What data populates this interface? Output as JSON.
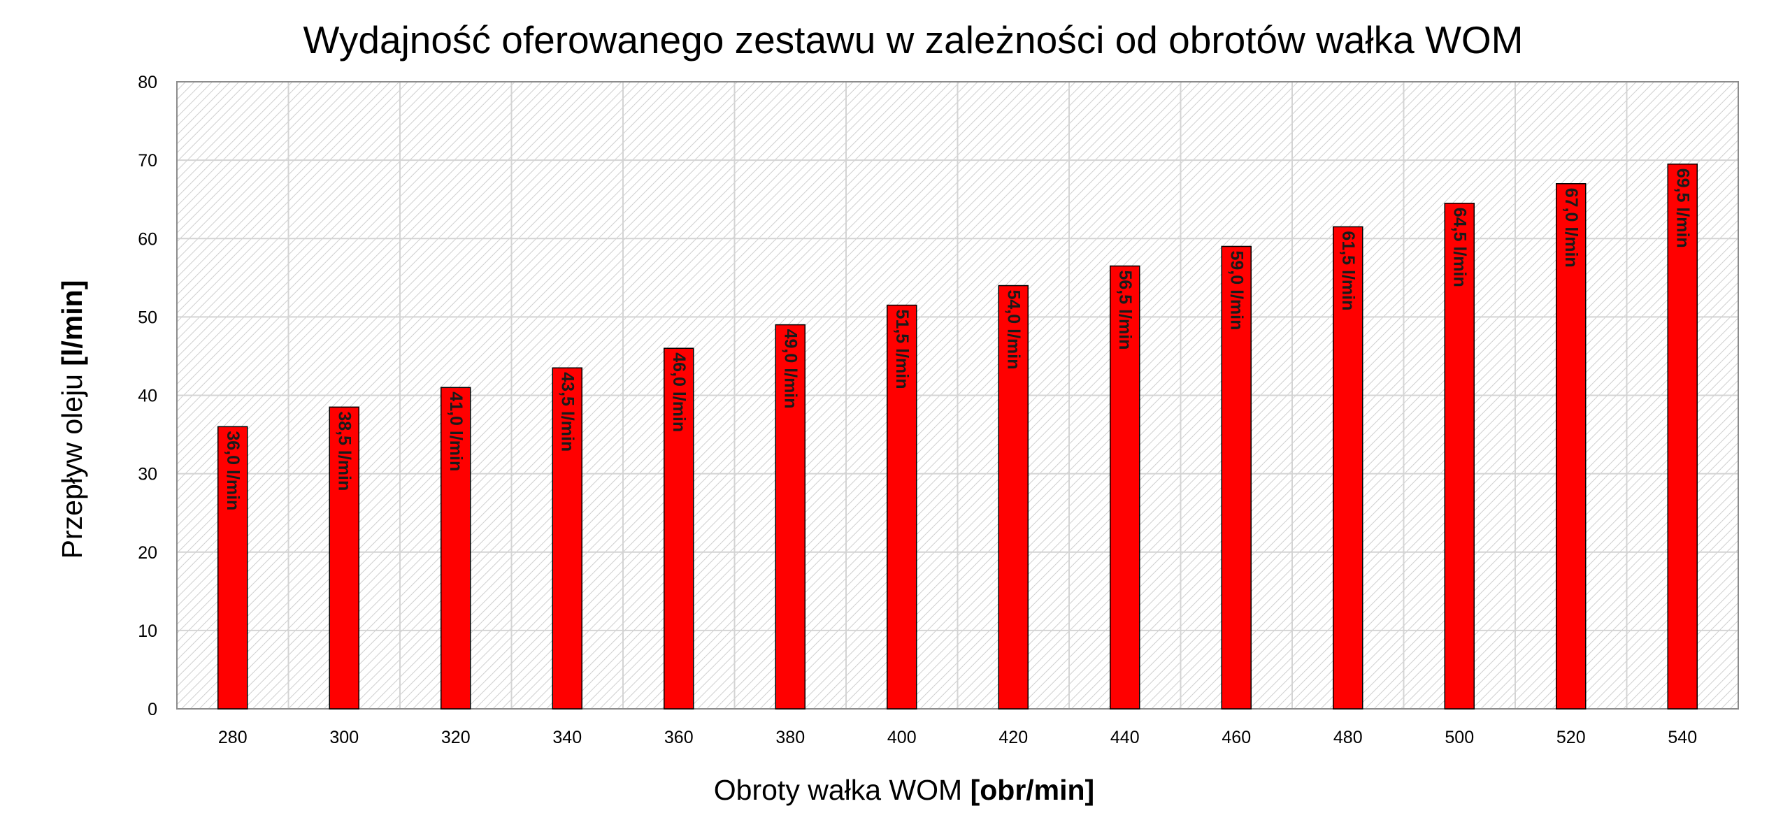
{
  "chart_data": {
    "type": "bar",
    "title": "Wydajność oferowanego zestawu w zależności od obrotów wałka WOM",
    "xlabel": "Obroty wałka WOM",
    "xlabel_unit": "[obr/min]",
    "ylabel": "Przepływ oleju",
    "ylabel_unit": "[l/min]",
    "categories": [
      "280",
      "300",
      "320",
      "340",
      "360",
      "380",
      "400",
      "420",
      "440",
      "460",
      "480",
      "500",
      "520",
      "540"
    ],
    "values": [
      36.0,
      38.5,
      41.0,
      43.5,
      46.0,
      49.0,
      51.5,
      54.0,
      56.5,
      59.0,
      61.5,
      64.5,
      67.0,
      69.5
    ],
    "data_labels": [
      "36,0 l/min",
      "38,5 l/min",
      "41,0 l/min",
      "43,5 l/min",
      "46,0 l/min",
      "49,0 l/min",
      "51,5 l/min",
      "54,0 l/min",
      "56,5 l/min",
      "59,0 l/min",
      "61,5 l/min",
      "64,5 l/min",
      "67,0 l/min",
      "69,5 l/min"
    ],
    "yticks": [
      "0",
      "10",
      "20",
      "30",
      "40",
      "50",
      "60",
      "70",
      "80"
    ],
    "ylim": [
      0,
      80
    ],
    "grid": true,
    "legend": "none",
    "bar_color": "#ff0000",
    "background_pattern": "diagonal-hatch"
  }
}
